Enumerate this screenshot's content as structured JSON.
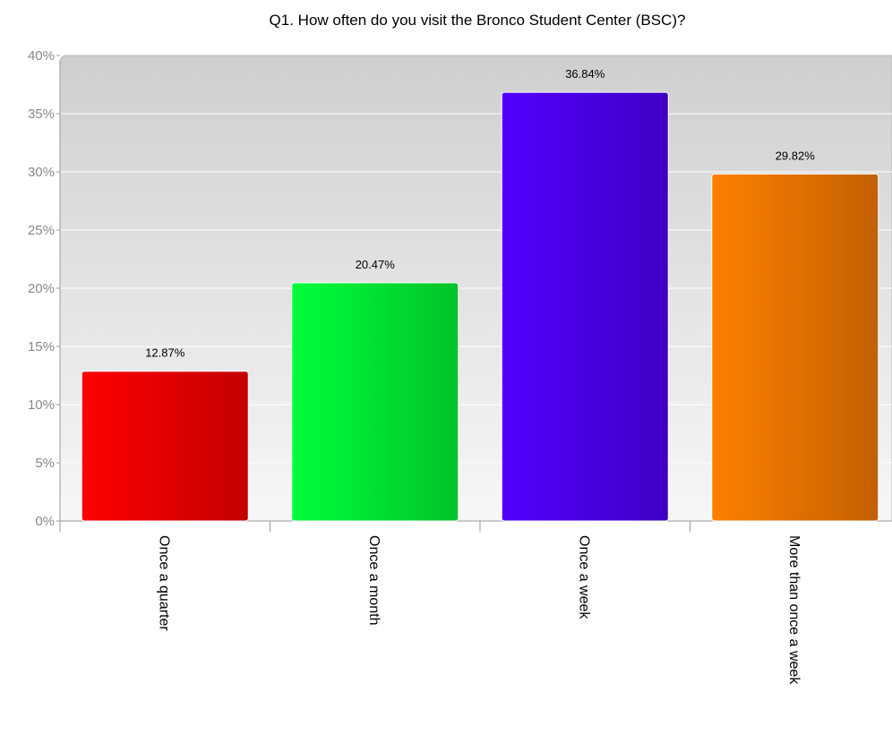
{
  "chart_data": {
    "type": "bar",
    "title": "Q1. How often do you visit the Bronco Student Center (BSC)?",
    "categories": [
      "Once a quarter",
      "Once a month",
      "Once a week",
      "More than once a week"
    ],
    "values": [
      12.87,
      20.47,
      36.84,
      29.82
    ],
    "data_labels": [
      "12.87%",
      "20.47%",
      "36.84%",
      "29.82%"
    ],
    "ylim": [
      0,
      40
    ],
    "y_ticks": [
      0,
      5,
      10,
      15,
      20,
      25,
      30,
      35,
      40
    ],
    "y_tick_labels": [
      "0%",
      "5%",
      "10%",
      "15%",
      "20%",
      "25%",
      "30%",
      "35%",
      "40%"
    ],
    "xlabel": "",
    "ylabel": "",
    "grid": true,
    "legend": "none",
    "bar_colors": [
      {
        "start": "#ff0000",
        "end": "#c40000"
      },
      {
        "start": "#00ff3a",
        "end": "#00c22a"
      },
      {
        "start": "#5200ff",
        "end": "#3f00c4"
      },
      {
        "start": "#ff8000",
        "end": "#c26000"
      }
    ],
    "plot_background": {
      "top": "#cfcfcf",
      "bottom": "#f7f7f7"
    }
  }
}
